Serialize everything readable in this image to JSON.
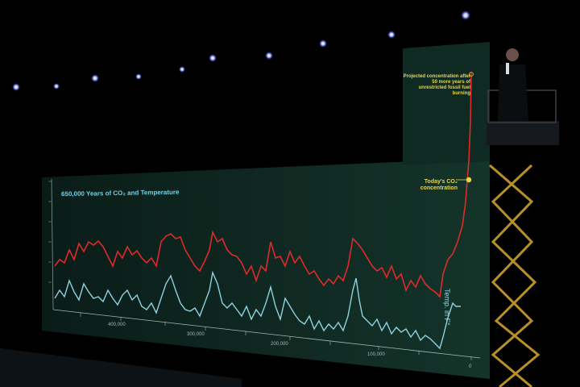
{
  "chart_title": "650,000 Years of CO₂ and Temperature",
  "annotation_projected": "Projected concentration after 50 more years of unrestricted fossil fuel burning",
  "annotation_today": "Today's CO₂ concentration",
  "temperature_axis_label": "Temp. in F°",
  "x_ticks": [
    "400,000",
    "300,000",
    "200,000",
    "100,000",
    "0"
  ],
  "colors": {
    "co2_line": "#e02a2a",
    "temperature_line": "#8fd3e0",
    "annotation": "#e8d64a",
    "screen": "#0f2a22"
  }
}
